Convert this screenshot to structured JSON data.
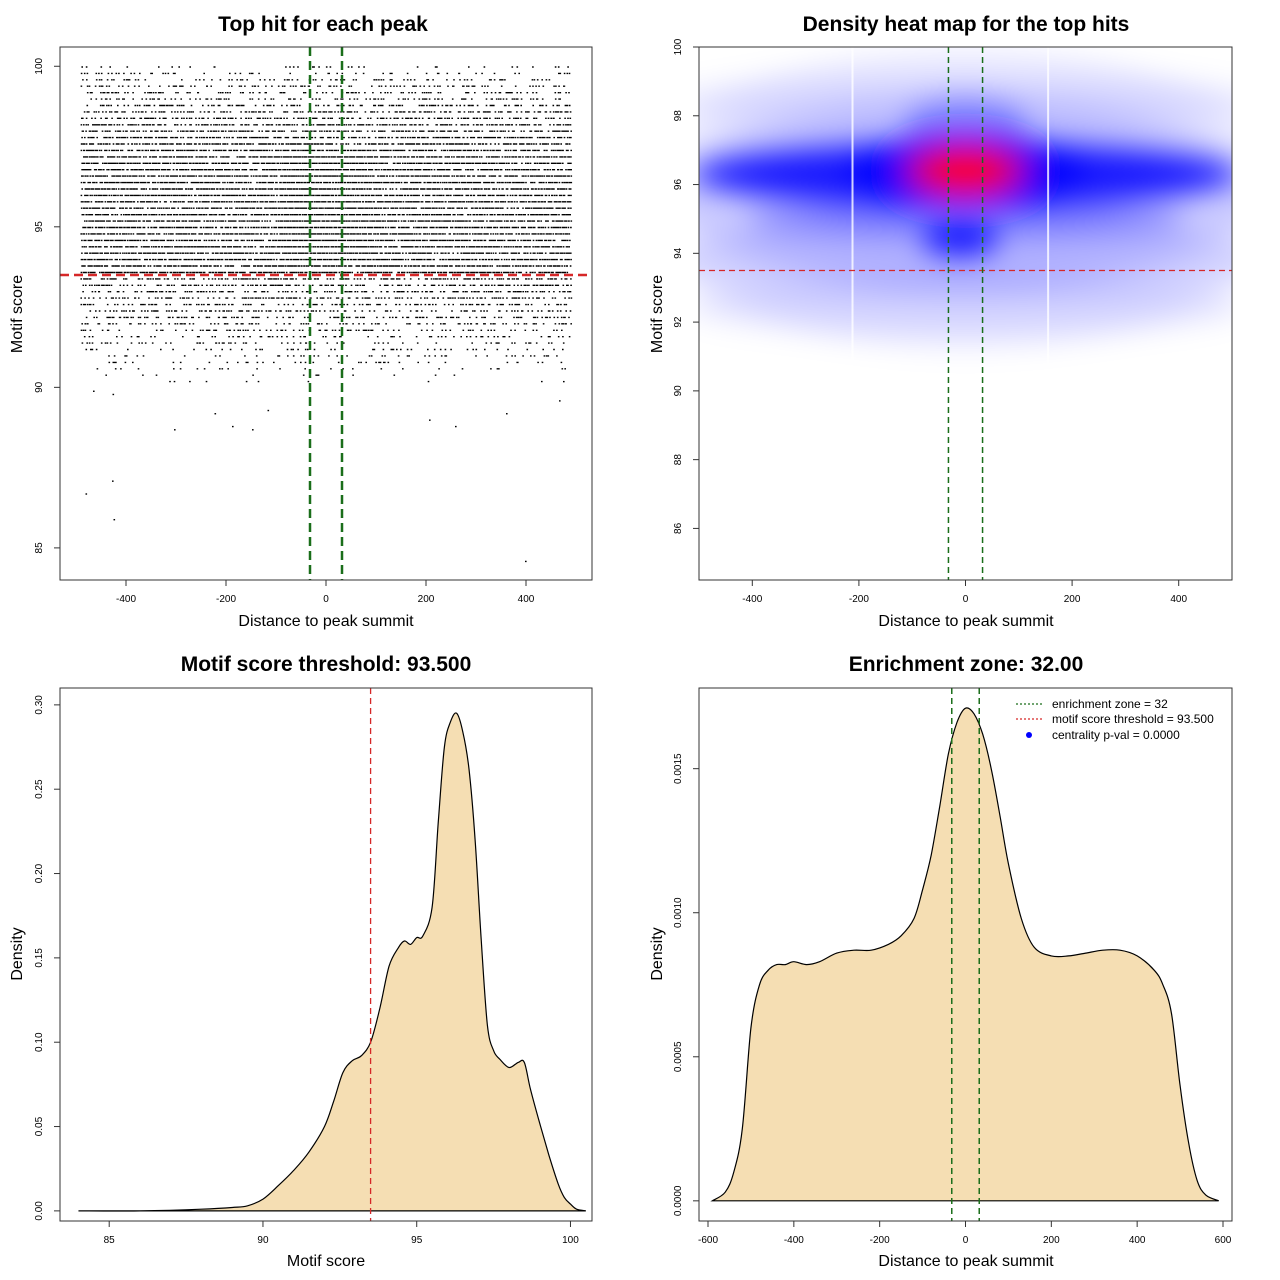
{
  "colors": {
    "threshold_line": "#d62728",
    "zone_line": "#1a6e1a",
    "density_fill": "#f5deb3",
    "heat_blue": "#0000ff",
    "heat_red": "#ff0000",
    "points": "#000000",
    "legend_pval_dot": "#0000ff"
  },
  "chart_data": [
    {
      "id": "scatter",
      "type": "scatter",
      "title": "Top hit for each peak",
      "xlabel": "Distance to peak summit",
      "ylabel": "Motif score",
      "xlim": [
        -532,
        532
      ],
      "ylim": [
        84,
        100.6
      ],
      "xticks": [
        -400,
        -200,
        0,
        200,
        400
      ],
      "yticks": [
        85,
        90,
        95,
        100
      ],
      "x_range_of_points": [
        -490,
        490
      ],
      "score_step": 0.2,
      "dense_score_range": [
        93.5,
        97.2
      ],
      "outliers": [
        {
          "x": -481,
          "y": 86.7
        },
        {
          "x": -428,
          "y": 87.1
        },
        {
          "x": -425,
          "y": 85.9
        },
        {
          "x": -304,
          "y": 88.7
        },
        {
          "x": -223,
          "y": 89.2
        },
        {
          "x": -188,
          "y": 88.8
        },
        {
          "x": -148,
          "y": 88.7
        },
        {
          "x": -117,
          "y": 89.3
        },
        {
          "x": 206,
          "y": 89.0
        },
        {
          "x": 258,
          "y": 88.8
        },
        {
          "x": 360,
          "y": 89.2
        },
        {
          "x": 398,
          "y": 84.6
        },
        {
          "x": -466,
          "y": 89.9
        },
        {
          "x": -427,
          "y": 89.8
        },
        {
          "x": 466,
          "y": 89.6
        },
        {
          "x": 474,
          "y": 90.2
        }
      ],
      "hlines": [
        {
          "y": 93.5,
          "role": "motif score threshold"
        }
      ],
      "vlines": [
        {
          "x": -32,
          "role": "enrichment zone"
        },
        {
          "x": 32,
          "role": "enrichment zone"
        }
      ]
    },
    {
      "id": "heatmap",
      "type": "heatmap",
      "title": "Density heat map for the top hits",
      "xlabel": "Distance to peak summit",
      "ylabel": "Motif score",
      "xlim": [
        -500,
        500
      ],
      "ylim": [
        84.5,
        100
      ],
      "xticks": [
        -400,
        -200,
        0,
        200,
        400
      ],
      "yticks": [
        86,
        88,
        90,
        92,
        94,
        96,
        98,
        100
      ],
      "hot_spot": {
        "x": 0,
        "y": 96.4
      },
      "hlines": [
        {
          "y": 93.5,
          "role": "motif score threshold"
        }
      ],
      "vlines": [
        {
          "x": -32,
          "role": "enrichment zone"
        },
        {
          "x": 32,
          "role": "enrichment zone"
        }
      ],
      "white_seams_x": [
        -212,
        155
      ]
    },
    {
      "id": "score_density",
      "type": "area",
      "title": "Motif score threshold: 93.500",
      "xlabel": "Motif score",
      "ylabel": "Density",
      "xlim": [
        83.4,
        100.7
      ],
      "ylim": [
        -0.006,
        0.31
      ],
      "xticks": [
        85,
        90,
        95,
        100
      ],
      "yticks": [
        0.0,
        0.05,
        0.1,
        0.15,
        0.2,
        0.25,
        0.3
      ],
      "ytick_labels": [
        "0.00",
        "0.05",
        "0.10",
        "0.15",
        "0.20",
        "0.25",
        "0.30"
      ],
      "x": [
        84.0,
        86.0,
        88.0,
        89.0,
        89.5,
        90.0,
        90.5,
        91.0,
        91.5,
        92.0,
        92.3,
        92.6,
        92.9,
        93.2,
        93.5,
        93.8,
        94.1,
        94.4,
        94.6,
        94.8,
        95.0,
        95.2,
        95.5,
        95.7,
        95.9,
        96.1,
        96.3,
        96.5,
        96.7,
        96.9,
        97.1,
        97.3,
        97.5,
        97.7,
        98.0,
        98.3,
        98.5,
        98.7,
        99.0,
        99.3,
        99.6,
        99.8,
        100.0,
        100.2,
        100.5
      ],
      "y": [
        0.0,
        0.0,
        0.001,
        0.002,
        0.003,
        0.007,
        0.015,
        0.024,
        0.035,
        0.05,
        0.065,
        0.082,
        0.089,
        0.092,
        0.1,
        0.12,
        0.145,
        0.156,
        0.16,
        0.158,
        0.162,
        0.163,
        0.18,
        0.23,
        0.275,
        0.29,
        0.295,
        0.284,
        0.262,
        0.22,
        0.16,
        0.11,
        0.095,
        0.09,
        0.085,
        0.088,
        0.088,
        0.072,
        0.052,
        0.033,
        0.016,
        0.008,
        0.004,
        0.001,
        0.0
      ],
      "vlines": [
        {
          "x": 93.5,
          "role": "motif score threshold"
        }
      ]
    },
    {
      "id": "distance_density",
      "type": "area",
      "title": "Enrichment zone: 32.00",
      "xlabel": "Distance to peak summit",
      "ylabel": "Density",
      "xlim": [
        -621,
        621
      ],
      "ylim": [
        -7e-05,
        0.00178
      ],
      "xticks": [
        -600,
        -400,
        -200,
        0,
        200,
        400,
        600
      ],
      "yticks": [
        0.0,
        0.0005,
        0.001,
        0.0015
      ],
      "ytick_labels": [
        "0.0000",
        "0.0005",
        "0.0010",
        "0.0015"
      ],
      "x": [
        -590,
        -560,
        -540,
        -520,
        -500,
        -480,
        -460,
        -440,
        -420,
        -400,
        -370,
        -340,
        -300,
        -260,
        -220,
        -180,
        -150,
        -120,
        -100,
        -80,
        -60,
        -40,
        -20,
        0,
        20,
        40,
        60,
        80,
        100,
        130,
        160,
        200,
        240,
        280,
        320,
        360,
        400,
        440,
        460,
        480,
        500,
        520,
        540,
        560,
        590
      ],
      "y": [
        0.0,
        3e-05,
        0.0001,
        0.00025,
        0.0006,
        0.00075,
        0.0008,
        0.00082,
        0.00082,
        0.00083,
        0.00082,
        0.00083,
        0.00086,
        0.00087,
        0.00087,
        0.00089,
        0.00092,
        0.00098,
        0.00108,
        0.0012,
        0.00137,
        0.00155,
        0.00166,
        0.00171,
        0.00169,
        0.00162,
        0.0015,
        0.00134,
        0.00117,
        0.00098,
        0.00088,
        0.00085,
        0.00085,
        0.00086,
        0.00087,
        0.00087,
        0.00085,
        0.0008,
        0.00075,
        0.00065,
        0.0004,
        0.0002,
        7e-05,
        2e-05,
        0.0
      ],
      "vlines": [
        {
          "x": -32,
          "role": "enrichment zone"
        },
        {
          "x": 32,
          "role": "enrichment zone"
        }
      ],
      "legend": {
        "position": "top-right",
        "entries": [
          {
            "label": "enrichment zone = 32",
            "style": "dotted",
            "color": "#1a6e1a"
          },
          {
            "label": "motif score threshold = 93.500",
            "style": "dotted",
            "color": "#d62728"
          },
          {
            "label": "centrality p-val = 0.0000",
            "style": "dot",
            "color": "#0000ff"
          }
        ]
      }
    }
  ]
}
